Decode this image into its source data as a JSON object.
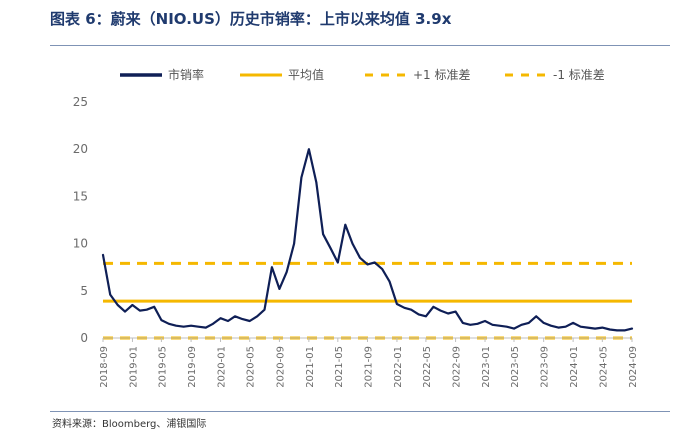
{
  "title": "图表 6：蔚来（NIO.US）历史市销率：上市以来均值 3.9x",
  "source": "资料来源：Bloomberg、浦银国际",
  "colors": {
    "series": "#0f1f56",
    "mean": "#f5b800",
    "band": "#f5b800",
    "title": "#1f3a6e"
  },
  "chart_data": {
    "type": "line",
    "title": "",
    "xlabel": "",
    "ylabel": "",
    "ylim": [
      0,
      25
    ],
    "yticks": [
      0,
      5,
      10,
      15,
      20,
      25
    ],
    "x_tick_labels": [
      "2018-09",
      "2019-01",
      "2019-05",
      "2019-09",
      "2020-01",
      "2020-05",
      "2020-09",
      "2021-01",
      "2021-05",
      "2021-09",
      "2022-01",
      "2022-05",
      "2022-09",
      "2023-01",
      "2023-05",
      "2023-09",
      "2024-01",
      "2024-05",
      "2024-09"
    ],
    "legend": {
      "placement": "top",
      "entries": [
        "市销率",
        "平均值",
        "+1 标准差",
        "-1 标准差"
      ]
    },
    "grid": false,
    "series": [
      {
        "name": "市销率",
        "style": "solid",
        "x": [
          "2018-09",
          "2018-10",
          "2018-11",
          "2018-12",
          "2019-01",
          "2019-02",
          "2019-03",
          "2019-04",
          "2019-05",
          "2019-06",
          "2019-07",
          "2019-08",
          "2019-09",
          "2019-10",
          "2019-11",
          "2019-12",
          "2020-01",
          "2020-02",
          "2020-03",
          "2020-04",
          "2020-05",
          "2020-06",
          "2020-07",
          "2020-08",
          "2020-09",
          "2020-10",
          "2020-11",
          "2020-12",
          "2021-01",
          "2021-02",
          "2021-03",
          "2021-04",
          "2021-05",
          "2021-06",
          "2021-07",
          "2021-08",
          "2021-09",
          "2021-10",
          "2021-11",
          "2021-12",
          "2022-01",
          "2022-02",
          "2022-03",
          "2022-04",
          "2022-05",
          "2022-06",
          "2022-07",
          "2022-08",
          "2022-09",
          "2022-10",
          "2022-11",
          "2022-12",
          "2023-01",
          "2023-02",
          "2023-03",
          "2023-04",
          "2023-05",
          "2023-06",
          "2023-07",
          "2023-08",
          "2023-09",
          "2023-10",
          "2023-11",
          "2023-12",
          "2024-01",
          "2024-02",
          "2024-03",
          "2024-04",
          "2024-05",
          "2024-06",
          "2024-07",
          "2024-08",
          "2024-09"
        ],
        "values": [
          8.8,
          4.6,
          3.5,
          2.8,
          3.5,
          2.9,
          3.0,
          3.3,
          1.9,
          1.5,
          1.3,
          1.2,
          1.3,
          1.2,
          1.1,
          1.5,
          2.1,
          1.8,
          2.3,
          2.0,
          1.8,
          2.3,
          3.0,
          7.5,
          5.2,
          7.0,
          10.0,
          17.0,
          20.0,
          16.5,
          11.0,
          9.5,
          8.0,
          12.0,
          10.0,
          8.5,
          7.8,
          8.0,
          7.3,
          6.0,
          3.6,
          3.2,
          3.0,
          2.5,
          2.3,
          3.3,
          2.9,
          2.6,
          2.8,
          1.6,
          1.4,
          1.5,
          1.8,
          1.4,
          1.3,
          1.2,
          1.0,
          1.4,
          1.6,
          2.3,
          1.6,
          1.3,
          1.1,
          1.2,
          1.6,
          1.2,
          1.1,
          1.0,
          1.1,
          0.9,
          0.8,
          0.8,
          1.0
        ]
      },
      {
        "name": "平均值",
        "style": "solid",
        "value": 3.9
      },
      {
        "name": "+1 标准差",
        "style": "dashed",
        "value": 7.9
      },
      {
        "name": "-1 标准差",
        "style": "dashed",
        "value": -0.1
      }
    ]
  }
}
